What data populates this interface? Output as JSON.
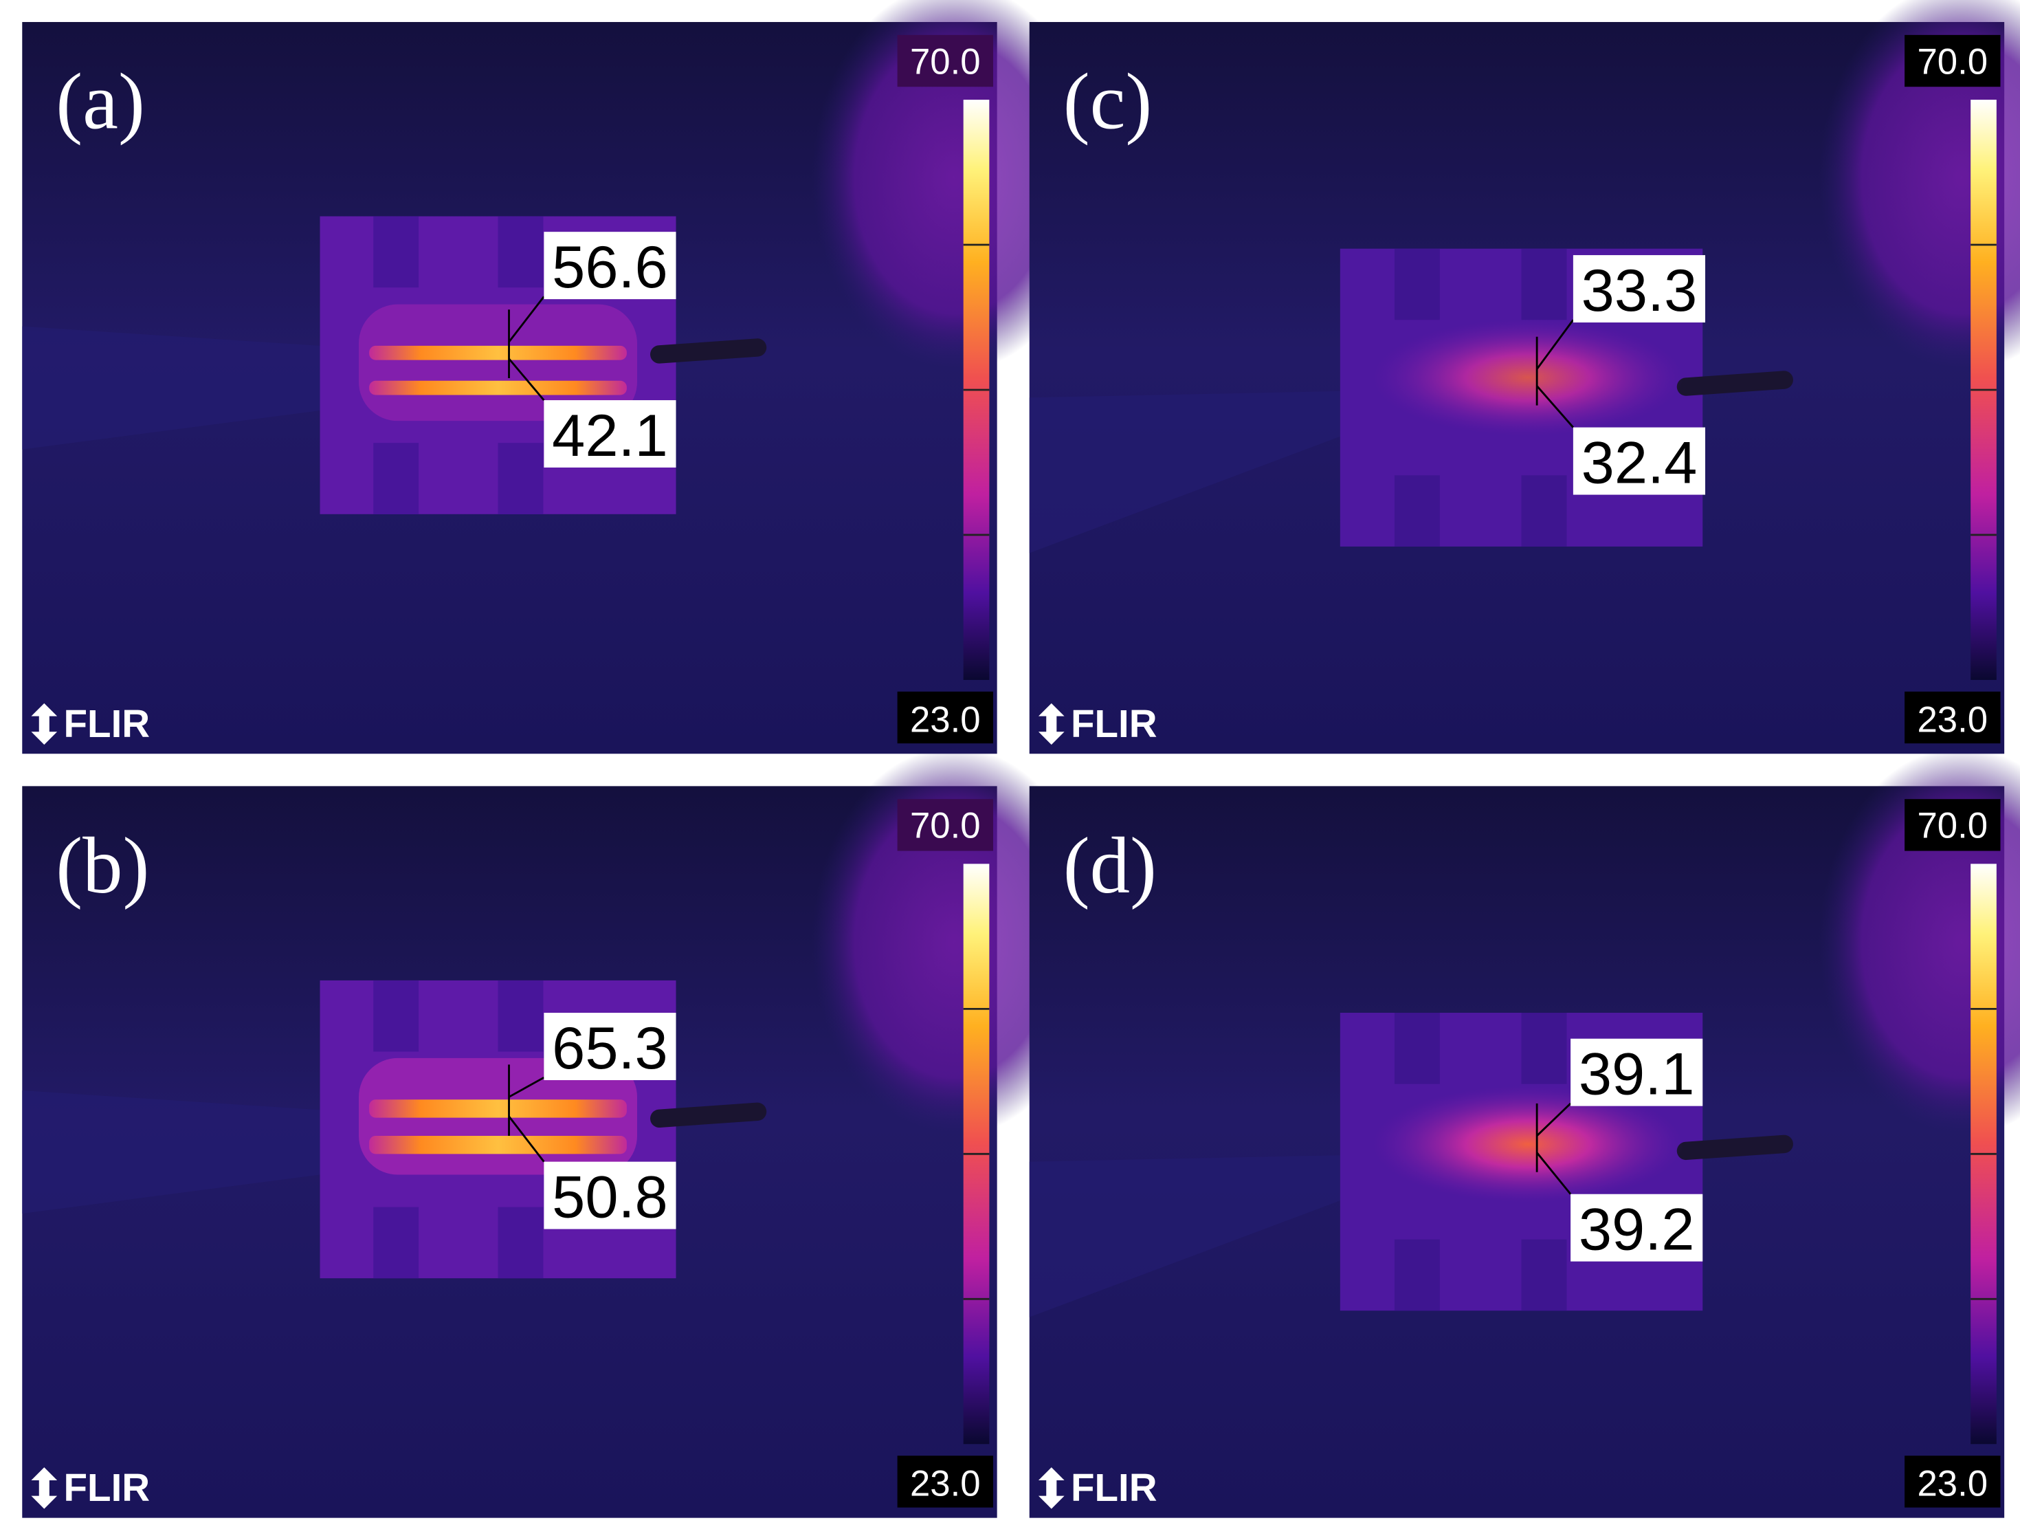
{
  "panels": [
    {
      "label": "(a)",
      "scale_max": "70.0",
      "scale_min": "23.0",
      "top_reading": "56.6",
      "bottom_reading": "42.1",
      "logo": "FLIR"
    },
    {
      "label": "(b)",
      "scale_max": "70.0",
      "scale_min": "23.0",
      "top_reading": "65.3",
      "bottom_reading": "50.8",
      "logo": "FLIR"
    },
    {
      "label": "(c)",
      "scale_max": "70.0",
      "scale_min": "23.0",
      "top_reading": "33.3",
      "bottom_reading": "32.4",
      "logo": "FLIR"
    },
    {
      "label": "(d)",
      "scale_max": "70.0",
      "scale_min": "23.0",
      "top_reading": "39.1",
      "bottom_reading": "39.2",
      "logo": "FLIR"
    }
  ]
}
